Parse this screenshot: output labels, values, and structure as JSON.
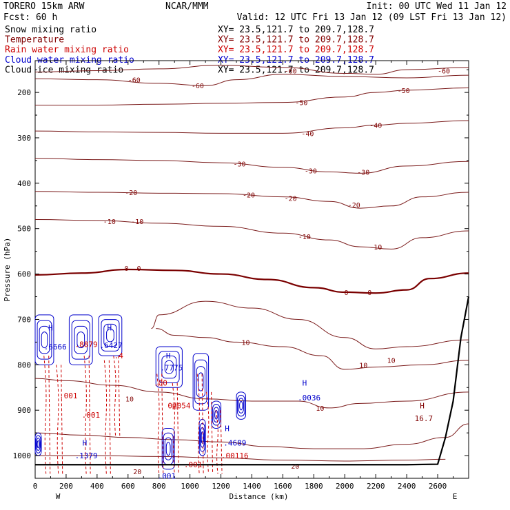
{
  "header": {
    "model_name": "TORERO  15km ARW",
    "center": "NCAR/MMM",
    "init": "Init: 00 UTC Wed 11 Jan 12",
    "fcst": "Fcst:   60 h",
    "valid": "Valid: 12 UTC Fri 13 Jan 12 (09 LST Fri 13 Jan 12)"
  },
  "legend": [
    {
      "field": "Snow mixing ratio",
      "color": "#000000",
      "xy": "XY=  23.5,121.7 to 209.7,128.7",
      "xy_color": "#000000"
    },
    {
      "field": "Temperature",
      "color": "#800000",
      "xy": "XY=  23.5,121.7 to 209.7,128.7",
      "xy_color": "#800000"
    },
    {
      "field": "Rain water mixing ratio",
      "color": "#cc0000",
      "xy": "XY=  23.5,121.7 to 209.7,128.7",
      "xy_color": "#cc0000"
    },
    {
      "field": "Cloud water mixing ratio",
      "color": "#0000cc",
      "xy": "XY=  23.5,121.7 to 209.7,128.7",
      "xy_color": "#0000cc"
    },
    {
      "field": "Cloud ice mixing ratio",
      "color": "#000000",
      "xy": "XY=  23.5,121.7 to 209.7,128.7",
      "xy_color": "#000000"
    }
  ],
  "colors": {
    "temperature": "#7a1a1a",
    "freezing_line": "#7a0000",
    "rain": "#cc0000",
    "cloud_water": "#0000cc",
    "terrain": "#000000"
  },
  "chart_data": {
    "type": "cross-section contour",
    "xlabel": "Distance (km)",
    "ylabel": "Pressure (hPa)",
    "x_ticks": [
      0,
      200,
      400,
      600,
      800,
      1000,
      1200,
      1400,
      1600,
      1800,
      2000,
      2200,
      2400,
      2600
    ],
    "y_ticks": [
      200,
      300,
      400,
      500,
      600,
      700,
      800,
      900,
      1000
    ],
    "xlim": [
      0,
      2800
    ],
    "ylim": [
      1050,
      130
    ],
    "x_end_labels": {
      "left": "W",
      "right": "E"
    },
    "temperature_contours": [
      {
        "value": -60,
        "labels": [
          {
            "x": 640,
            "p": 172,
            "text": "-60"
          },
          {
            "x": 1050,
            "p": 185,
            "text": "-60"
          },
          {
            "x": 1650,
            "p": 152,
            "text": "-60"
          },
          {
            "x": 2640,
            "p": 152,
            "text": "-60"
          }
        ],
        "points": [
          [
            0,
            155
          ],
          [
            400,
            152
          ],
          [
            800,
            148
          ],
          [
            1200,
            140
          ],
          [
            1600,
            145
          ],
          [
            2000,
            158
          ],
          [
            2200,
            160
          ],
          [
            2400,
            150
          ],
          [
            2800,
            145
          ]
        ]
      },
      {
        "value": -60,
        "labels": [],
        "points": [
          [
            0,
            170
          ],
          [
            400,
            172
          ],
          [
            800,
            180
          ],
          [
            1100,
            185
          ],
          [
            1300,
            172
          ],
          [
            1600,
            160
          ],
          [
            2000,
            165
          ],
          [
            2400,
            168
          ],
          [
            2800,
            162
          ]
        ]
      },
      {
        "value": -50,
        "labels": [
          {
            "x": 1720,
            "p": 222,
            "text": "-50"
          },
          {
            "x": 2380,
            "p": 195,
            "text": "-50"
          }
        ],
        "points": [
          [
            0,
            228
          ],
          [
            400,
            228
          ],
          [
            800,
            226
          ],
          [
            1200,
            224
          ],
          [
            1600,
            222
          ],
          [
            2000,
            210
          ],
          [
            2200,
            200
          ],
          [
            2400,
            195
          ],
          [
            2800,
            190
          ]
        ]
      },
      {
        "value": -40,
        "labels": [
          {
            "x": 1760,
            "p": 290,
            "text": "-40"
          },
          {
            "x": 2200,
            "p": 272,
            "text": "-40"
          }
        ],
        "points": [
          [
            0,
            285
          ],
          [
            400,
            287
          ],
          [
            800,
            288
          ],
          [
            1200,
            290
          ],
          [
            1600,
            290
          ],
          [
            2000,
            278
          ],
          [
            2200,
            272
          ],
          [
            2400,
            268
          ],
          [
            2800,
            262
          ]
        ]
      },
      {
        "value": -30,
        "labels": [
          {
            "x": 1320,
            "p": 357,
            "text": "-30"
          },
          {
            "x": 1780,
            "p": 372,
            "text": "-30"
          },
          {
            "x": 2120,
            "p": 375,
            "text": "-30"
          }
        ],
        "points": [
          [
            0,
            345
          ],
          [
            400,
            348
          ],
          [
            800,
            350
          ],
          [
            1200,
            355
          ],
          [
            1600,
            365
          ],
          [
            1900,
            375
          ],
          [
            2100,
            378
          ],
          [
            2400,
            362
          ],
          [
            2800,
            352
          ]
        ]
      },
      {
        "value": -20,
        "labels": [
          {
            "x": 620,
            "p": 420,
            "text": "-20"
          },
          {
            "x": 1380,
            "p": 425,
            "text": "-20"
          },
          {
            "x": 1650,
            "p": 433,
            "text": "-20"
          },
          {
            "x": 2060,
            "p": 447,
            "text": "-20"
          }
        ],
        "points": [
          [
            0,
            418
          ],
          [
            400,
            420
          ],
          [
            800,
            422
          ],
          [
            1200,
            423
          ],
          [
            1600,
            430
          ],
          [
            1900,
            440
          ],
          [
            2100,
            455
          ],
          [
            2300,
            450
          ],
          [
            2500,
            430
          ],
          [
            2800,
            420
          ]
        ]
      },
      {
        "value": -10,
        "labels": [
          {
            "x": 480,
            "p": 484,
            "text": "-10"
          },
          {
            "x": 660,
            "p": 484,
            "text": "-10"
          },
          {
            "x": 1740,
            "p": 517,
            "text": "-10"
          },
          {
            "x": 2200,
            "p": 540,
            "text": "-10"
          }
        ],
        "points": [
          [
            0,
            480
          ],
          [
            400,
            482
          ],
          [
            800,
            488
          ],
          [
            1200,
            495
          ],
          [
            1600,
            510
          ],
          [
            1900,
            525
          ],
          [
            2100,
            540
          ],
          [
            2300,
            545
          ],
          [
            2500,
            520
          ],
          [
            2800,
            505
          ]
        ]
      },
      {
        "value": 0,
        "freezing": true,
        "labels": [
          {
            "x": 590,
            "p": 587,
            "text": "0"
          },
          {
            "x": 670,
            "p": 587,
            "text": "0"
          },
          {
            "x": 2010,
            "p": 640,
            "text": "0"
          },
          {
            "x": 2160,
            "p": 640,
            "text": "0"
          }
        ],
        "points": [
          [
            0,
            602
          ],
          [
            300,
            598
          ],
          [
            600,
            590
          ],
          [
            900,
            592
          ],
          [
            1200,
            600
          ],
          [
            1500,
            612
          ],
          [
            1800,
            630
          ],
          [
            2000,
            640
          ],
          [
            2200,
            642
          ],
          [
            2400,
            635
          ],
          [
            2550,
            610
          ],
          [
            2800,
            598
          ]
        ]
      },
      {
        "value": 10,
        "labels": [
          {
            "x": 2120,
            "p": 800,
            "text": "10"
          },
          {
            "x": 2300,
            "p": 790,
            "text": "10"
          }
        ],
        "points": [
          [
            750,
            720
          ],
          [
            800,
            690
          ],
          [
            1100,
            660
          ],
          [
            1400,
            675
          ],
          [
            1700,
            700
          ],
          [
            2000,
            740
          ],
          [
            2200,
            765
          ],
          [
            2400,
            760
          ],
          [
            2800,
            745
          ]
        ]
      },
      {
        "value": 10,
        "labels": [
          {
            "x": 1360,
            "p": 750,
            "text": "10"
          }
        ],
        "points": [
          [
            780,
            720
          ],
          [
            900,
            735
          ],
          [
            1100,
            740
          ],
          [
            1300,
            750
          ],
          [
            1600,
            760
          ],
          [
            1850,
            780
          ],
          [
            2000,
            810
          ],
          [
            2200,
            805
          ],
          [
            2500,
            800
          ],
          [
            2800,
            790
          ]
        ]
      },
      {
        "value": 10,
        "labels": [
          {
            "x": 610,
            "p": 875,
            "text": "10"
          },
          {
            "x": 1840,
            "p": 895,
            "text": "10"
          }
        ],
        "points": [
          [
            0,
            830
          ],
          [
            200,
            835
          ],
          [
            500,
            845
          ],
          [
            800,
            860
          ],
          [
            1100,
            875
          ],
          [
            1400,
            880
          ],
          [
            1700,
            880
          ],
          [
            1900,
            895
          ],
          [
            2100,
            885
          ],
          [
            2400,
            880
          ],
          [
            2800,
            860
          ]
        ]
      },
      {
        "value": 20,
        "labels": [
          {
            "x": 660,
            "p": 1035,
            "text": "20"
          },
          {
            "x": 1680,
            "p": 1023,
            "text": "20"
          }
        ],
        "points": [
          [
            0,
            950
          ],
          [
            300,
            955
          ],
          [
            600,
            960
          ],
          [
            900,
            965
          ],
          [
            1200,
            970
          ],
          [
            1500,
            980
          ],
          [
            1800,
            985
          ],
          [
            2100,
            985
          ],
          [
            2400,
            975
          ],
          [
            2650,
            960
          ],
          [
            2800,
            930
          ]
        ]
      },
      {
        "value": 20,
        "labels": [],
        "points": [
          [
            0,
            1000
          ],
          [
            400,
            1000
          ],
          [
            800,
            1002
          ],
          [
            1200,
            1005
          ],
          [
            1600,
            1010
          ],
          [
            2000,
            1012
          ],
          [
            2400,
            1010
          ],
          [
            2650,
            1008
          ]
        ]
      }
    ],
    "field_labels": [
      {
        "x": 100,
        "p": 718,
        "text": "H",
        "color": "#0000cc"
      },
      {
        "x": 130,
        "p": 760,
        "text": ".6666",
        "color": "#0000cc"
      },
      {
        "x": 330,
        "p": 755,
        "text": ".8879",
        "color": "#cc0000"
      },
      {
        "x": 480,
        "p": 718,
        "text": "H",
        "color": "#0000cc"
      },
      {
        "x": 490,
        "p": 757,
        "text": ".6427",
        "color": "#0000cc"
      },
      {
        "x": 540,
        "p": 780,
        "text": ".4",
        "color": "#cc0000"
      },
      {
        "x": 860,
        "p": 780,
        "text": "H",
        "color": "#0000cc"
      },
      {
        "x": 880,
        "p": 806,
        "text": ".7775",
        "color": "#0000cc"
      },
      {
        "x": 810,
        "p": 840,
        "text": ".00",
        "color": "#cc0000"
      },
      {
        "x": 930,
        "p": 890,
        "text": "07054",
        "color": "#cc0000"
      },
      {
        "x": 900,
        "p": 892,
        "text": "H",
        "color": "#cc0000"
      },
      {
        "x": 215,
        "p": 868,
        "text": ".001",
        "color": "#cc0000"
      },
      {
        "x": 360,
        "p": 910,
        "text": ".001",
        "color": "#cc0000"
      },
      {
        "x": 320,
        "p": 972,
        "text": "H",
        "color": "#0000cc"
      },
      {
        "x": 330,
        "p": 1000,
        "text": ".1379",
        "color": "#0000cc"
      },
      {
        "x": 850,
        "p": 1045,
        "text": ".001",
        "color": "#0000cc"
      },
      {
        "x": 1020,
        "p": 1020,
        "text": ".001",
        "color": "#cc0000"
      },
      {
        "x": 1240,
        "p": 940,
        "text": "H",
        "color": "#0000cc"
      },
      {
        "x": 1290,
        "p": 972,
        "text": ".4689",
        "color": "#0000cc"
      },
      {
        "x": 1290,
        "p": 1000,
        "text": ".00116",
        "color": "#cc0000"
      },
      {
        "x": 1740,
        "p": 840,
        "text": "H",
        "color": "#0000cc"
      },
      {
        "x": 1770,
        "p": 872,
        "text": ".0036",
        "color": "#0000cc"
      },
      {
        "x": 2500,
        "p": 890,
        "text": "H",
        "color": "#800000"
      },
      {
        "x": 2510,
        "p": 918,
        "text": "16.7",
        "color": "#800000"
      }
    ],
    "cloud_water_cells": [
      {
        "x0": 0,
        "x1": 120,
        "p0": 690,
        "p1": 800
      },
      {
        "x0": 220,
        "x1": 370,
        "p0": 690,
        "p1": 800
      },
      {
        "x0": 410,
        "x1": 560,
        "p0": 690,
        "p1": 780
      },
      {
        "x0": 780,
        "x1": 950,
        "p0": 760,
        "p1": 850
      },
      {
        "x0": 1020,
        "x1": 1120,
        "p0": 775,
        "p1": 900
      },
      {
        "x0": 1140,
        "x1": 1200,
        "p0": 880,
        "p1": 940
      },
      {
        "x0": 1300,
        "x1": 1360,
        "p0": 860,
        "p1": 920
      },
      {
        "x0": 820,
        "x1": 900,
        "p0": 940,
        "p1": 1030
      },
      {
        "x0": 1060,
        "x1": 1100,
        "p0": 920,
        "p1": 1000
      },
      {
        "x0": 0,
        "x1": 40,
        "p0": 950,
        "p1": 1000
      }
    ],
    "rain_columns": [
      {
        "x": 70,
        "p0": 780,
        "p1": 1040
      },
      {
        "x": 150,
        "p0": 800,
        "p1": 1040
      },
      {
        "x": 330,
        "p0": 780,
        "p1": 1040
      },
      {
        "x": 460,
        "p0": 790,
        "p1": 1040
      },
      {
        "x": 520,
        "p0": 780,
        "p1": 960
      },
      {
        "x": 800,
        "p0": 820,
        "p1": 1040
      },
      {
        "x": 900,
        "p0": 840,
        "p1": 1040
      },
      {
        "x": 1060,
        "p0": 820,
        "p1": 1040
      },
      {
        "x": 1120,
        "p0": 860,
        "p1": 1040
      },
      {
        "x": 1180,
        "p0": 900,
        "p1": 1040
      }
    ],
    "terrain": [
      [
        0,
        1020
      ],
      [
        400,
        1020
      ],
      [
        800,
        1020
      ],
      [
        1200,
        1020
      ],
      [
        1600,
        1020
      ],
      [
        2000,
        1020
      ],
      [
        2400,
        1020
      ],
      [
        2600,
        1019
      ],
      [
        2650,
        960
      ],
      [
        2700,
        880
      ],
      [
        2750,
        740
      ],
      [
        2800,
        650
      ]
    ]
  }
}
